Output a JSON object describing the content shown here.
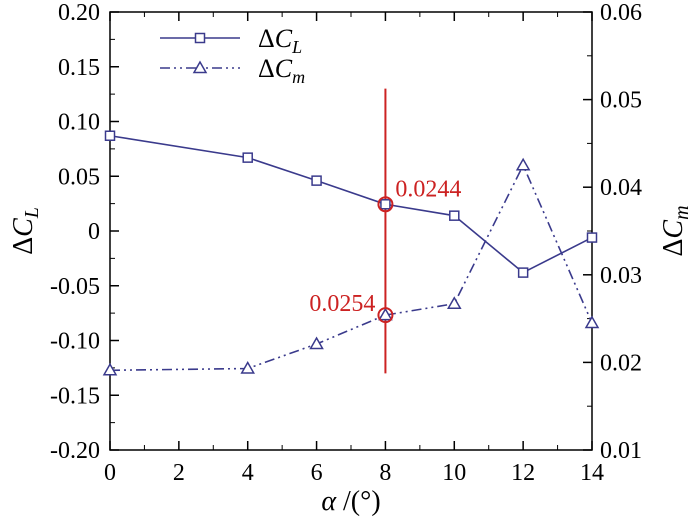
{
  "chart_data": {
    "type": "line",
    "title": "",
    "xlabel": {
      "main": "α",
      "unit": " /(°)"
    },
    "ylabel": {
      "delta": "Δ",
      "symbol": "C",
      "sub": "L"
    },
    "y2label": {
      "delta": "Δ",
      "symbol": "C",
      "sub": "m"
    },
    "xlim": [
      0,
      14
    ],
    "ylim": [
      -0.2,
      0.2
    ],
    "y2lim": [
      0.01,
      0.06
    ],
    "xticks": [
      0,
      2,
      4,
      6,
      8,
      10,
      12,
      14
    ],
    "xtick_labels": [
      "0",
      "2",
      "4",
      "6",
      "8",
      "10",
      "12",
      "14"
    ],
    "yticks": [
      -0.2,
      -0.15,
      -0.1,
      -0.05,
      0,
      0.05,
      0.1,
      0.15,
      0.2
    ],
    "ytick_labels": [
      "-0.20",
      "-0.15",
      "-0.10",
      "-0.05",
      "0",
      "0.05",
      "0.10",
      "0.15",
      "0.20"
    ],
    "y2ticks": [
      0.01,
      0.02,
      0.03,
      0.04,
      0.05,
      0.06
    ],
    "y2tick_labels": [
      "0.01",
      "0.02",
      "0.03",
      "0.04",
      "0.05",
      "0.06"
    ],
    "grid": false,
    "legend_position": "top-left",
    "series": [
      {
        "name": {
          "delta": "Δ",
          "symbol": "C",
          "sub": "L"
        },
        "axis": "left",
        "marker": "square",
        "line_style": "solid",
        "color": "#3a3a8c",
        "x": [
          0,
          4,
          6,
          8,
          10,
          12,
          14
        ],
        "y": [
          0.087,
          0.067,
          0.046,
          0.0244,
          0.014,
          -0.038,
          -0.006
        ]
      },
      {
        "name": {
          "delta": "Δ",
          "symbol": "C",
          "sub": "m"
        },
        "axis": "right",
        "marker": "triangle",
        "line_style": "dash-dot-dot",
        "color": "#3a3a8c",
        "x": [
          0,
          4,
          6,
          8,
          10,
          12,
          14
        ],
        "y": [
          0.0191,
          0.0193,
          0.0221,
          0.0254,
          0.0267,
          0.0425,
          0.0245
        ]
      }
    ],
    "annotations": [
      {
        "text": "0.0244",
        "x": 8,
        "y": 0.0244,
        "axis": "left",
        "color": "#cc2222"
      },
      {
        "text": "0.0254",
        "x": 8,
        "y": 0.0254,
        "axis": "right",
        "color": "#cc2222"
      }
    ],
    "vertical_line": {
      "x": 8,
      "y_from": -0.13,
      "y_to": 0.13,
      "color": "#cc2222"
    }
  }
}
